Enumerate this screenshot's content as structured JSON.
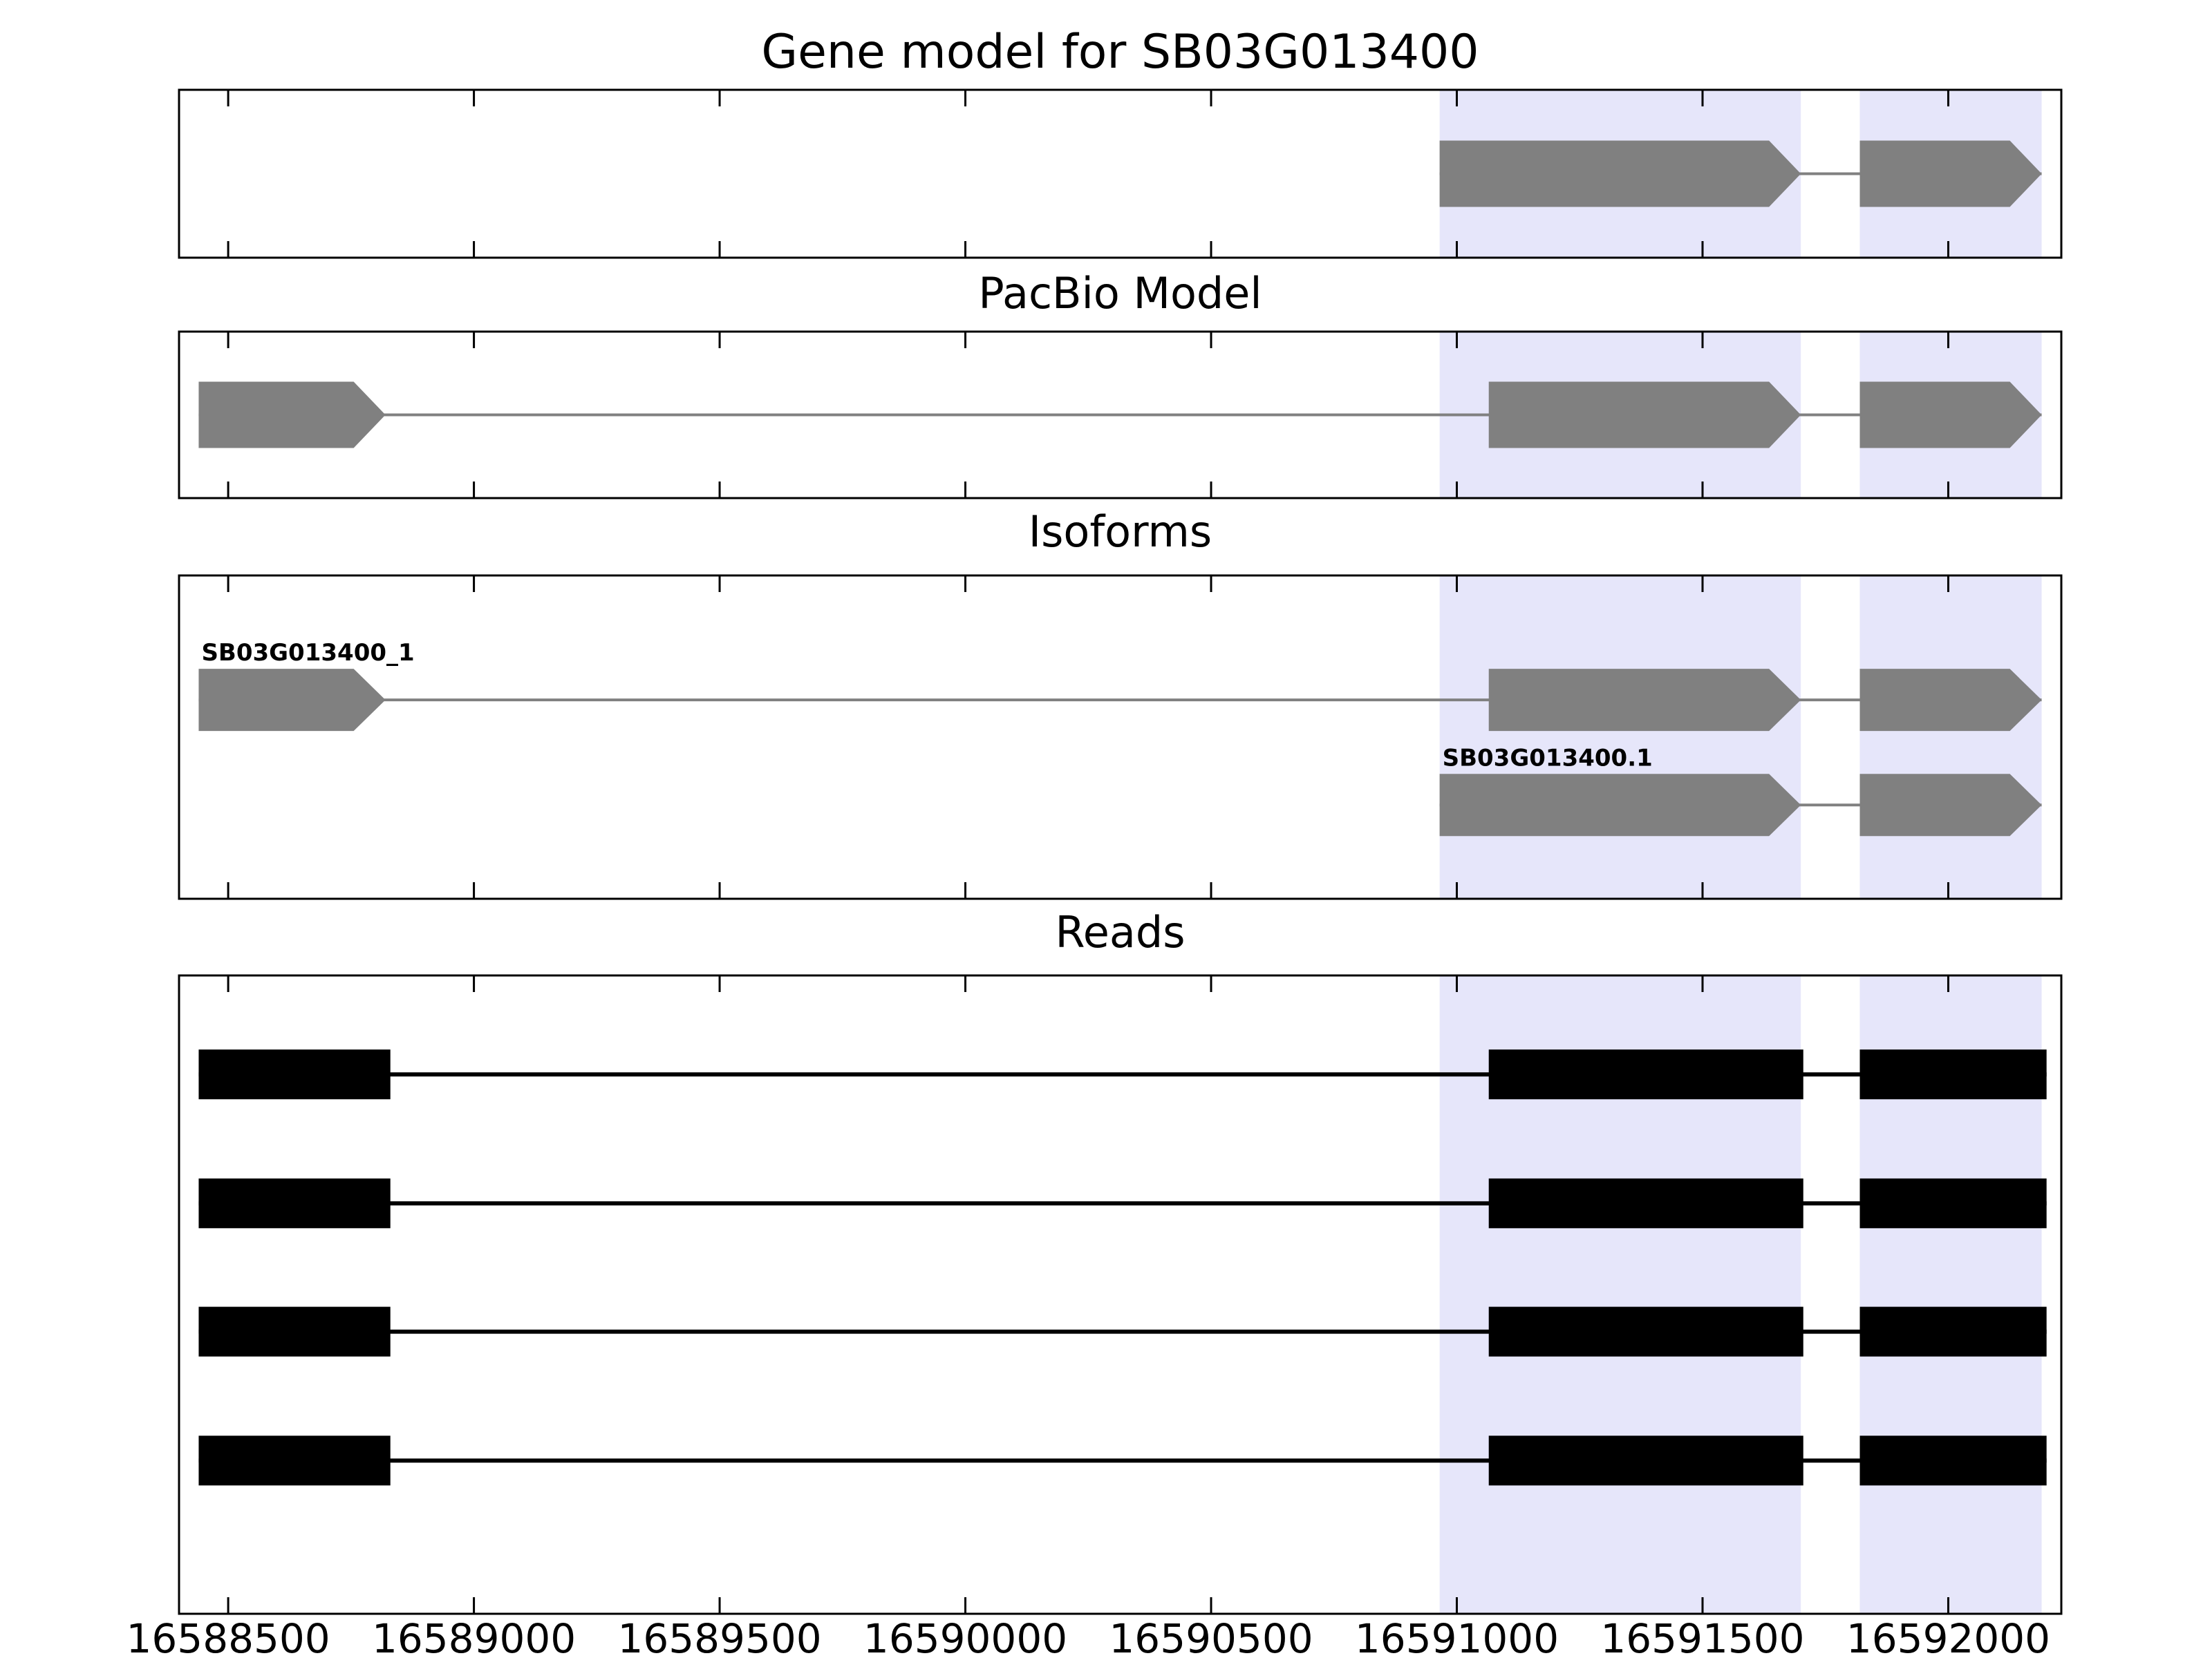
{
  "chart_data": {
    "type": "genomic-tracks",
    "title": "Gene model for SB03G013400",
    "xlabel": "",
    "ylabel": "",
    "grid": false,
    "legend": false,
    "xlim": [
      16588400,
      16592230
    ],
    "x_ticks": [
      16588500,
      16589000,
      16589500,
      16590000,
      16590500,
      16591000,
      16591500,
      16592000
    ],
    "x_tick_labels": [
      "16588500",
      "16589000",
      "16589500",
      "16590000",
      "16590500",
      "16591000",
      "16591500",
      "16592000"
    ],
    "highlight_color": "#e6e6fa",
    "model_exon_color": "#808080",
    "read_exon_color": "#000000",
    "axis_color": "#000000",
    "highlight_regions": [
      [
        16590965,
        16591700
      ],
      [
        16591820,
        16592190
      ]
    ],
    "panels": [
      {
        "id": "gene_model",
        "title": "Gene model for SB03G013400",
        "features": [
          {
            "label": "",
            "strand": "+",
            "color": "#808080",
            "exons": [
              [
                16590965,
                16591700
              ],
              [
                16591820,
                16592190
              ]
            ]
          }
        ]
      },
      {
        "id": "pacbio",
        "title": "PacBio Model",
        "features": [
          {
            "label": "",
            "strand": "+",
            "color": "#808080",
            "exons": [
              [
                16588440,
                16588820
              ],
              [
                16591065,
                16591700
              ],
              [
                16591820,
                16592190
              ]
            ]
          }
        ]
      },
      {
        "id": "isoforms",
        "title": "Isoforms",
        "features": [
          {
            "label": "SB03G013400_1",
            "strand": "+",
            "color": "#808080",
            "exons": [
              [
                16588440,
                16588820
              ],
              [
                16591065,
                16591700
              ],
              [
                16591820,
                16592190
              ]
            ]
          },
          {
            "label": "SB03G013400.1",
            "strand": "+",
            "color": "#808080",
            "exons": [
              [
                16590965,
                16591700
              ],
              [
                16591820,
                16592190
              ]
            ]
          }
        ]
      },
      {
        "id": "reads",
        "title": "Reads",
        "features": [
          {
            "label": "",
            "strand": ".",
            "color": "#000000",
            "exons": [
              [
                16588440,
                16588830
              ],
              [
                16591065,
                16591705
              ],
              [
                16591820,
                16592200
              ]
            ]
          },
          {
            "label": "",
            "strand": ".",
            "color": "#000000",
            "exons": [
              [
                16588440,
                16588830
              ],
              [
                16591065,
                16591705
              ],
              [
                16591820,
                16592200
              ]
            ]
          },
          {
            "label": "",
            "strand": ".",
            "color": "#000000",
            "exons": [
              [
                16588440,
                16588830
              ],
              [
                16591065,
                16591705
              ],
              [
                16591820,
                16592200
              ]
            ]
          },
          {
            "label": "",
            "strand": ".",
            "color": "#000000",
            "exons": [
              [
                16588440,
                16588830
              ],
              [
                16591065,
                16591705
              ],
              [
                16591820,
                16592200
              ]
            ]
          }
        ]
      }
    ]
  }
}
